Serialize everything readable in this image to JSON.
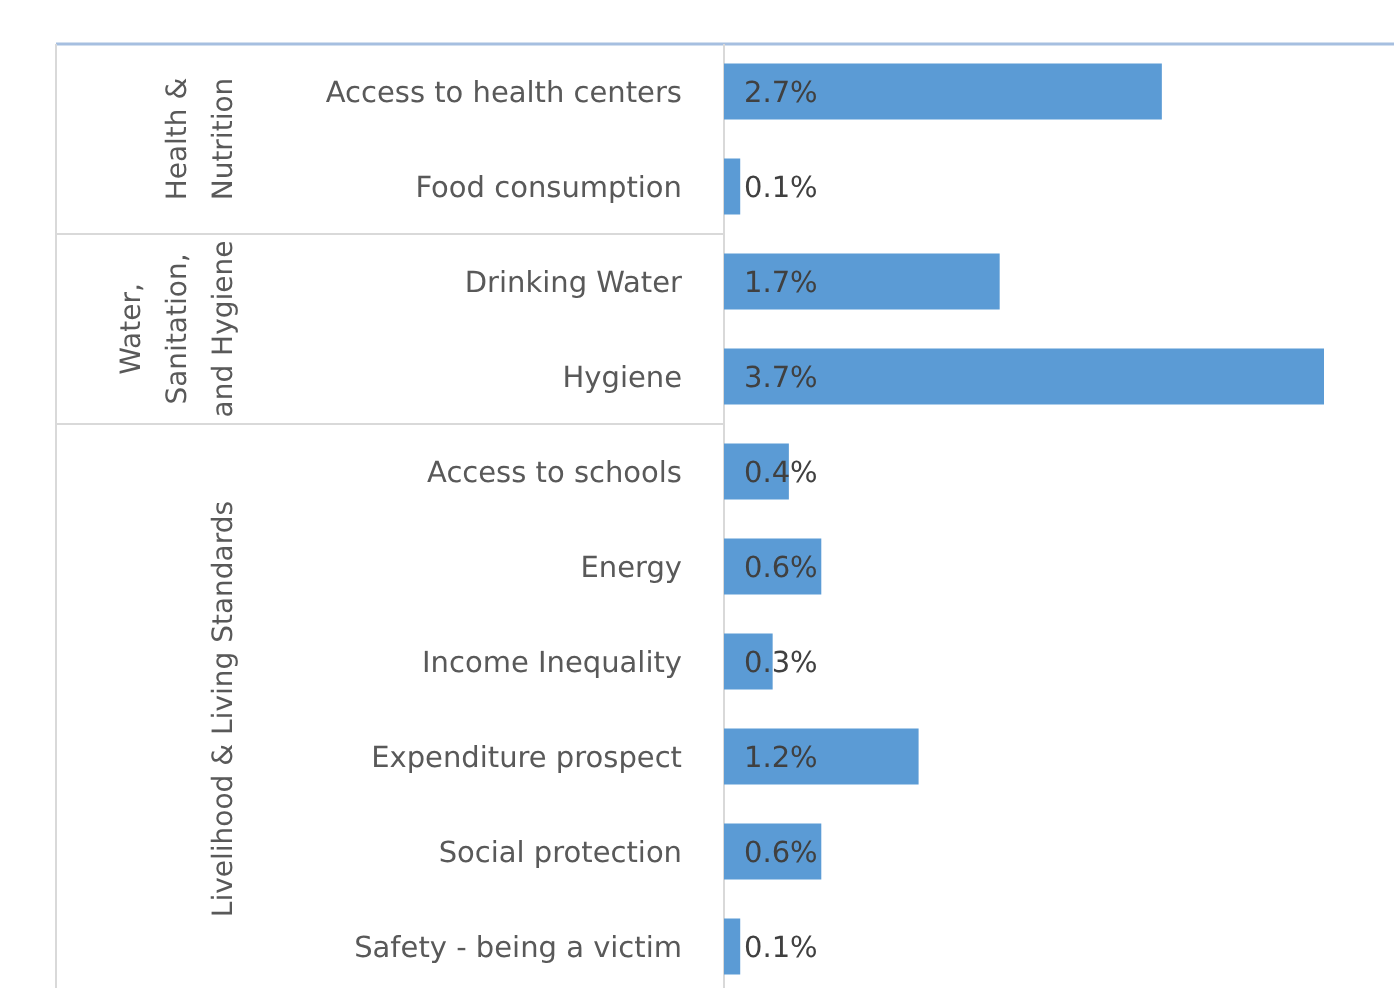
{
  "chart_data": {
    "type": "bar",
    "orientation": "horizontal",
    "relative": false,
    "categories": [
      "Access to health centers",
      "Food consumption",
      "Drinking Water",
      "Hygiene",
      "Access to schools",
      "Energy",
      "Income Inequality",
      "Expenditure prospect",
      "Social protection",
      "Safety - being a victim"
    ],
    "values": [
      2.7,
      0.1,
      1.7,
      3.7,
      0.4,
      0.6,
      0.3,
      1.2,
      0.6,
      0.1
    ],
    "value_labels": [
      "2.7%",
      "0.1%",
      "1.7%",
      "3.7%",
      "0.4%",
      "0.6%",
      "0.3%",
      "1.2%",
      "0.6%",
      "0.1%"
    ],
    "color": "#5b9bd5",
    "annotations": [
      "Health & Nutrition",
      "Water, Sanitation, and Hygiene",
      "Livelihood & Living Standards"
    ]
  }
}
